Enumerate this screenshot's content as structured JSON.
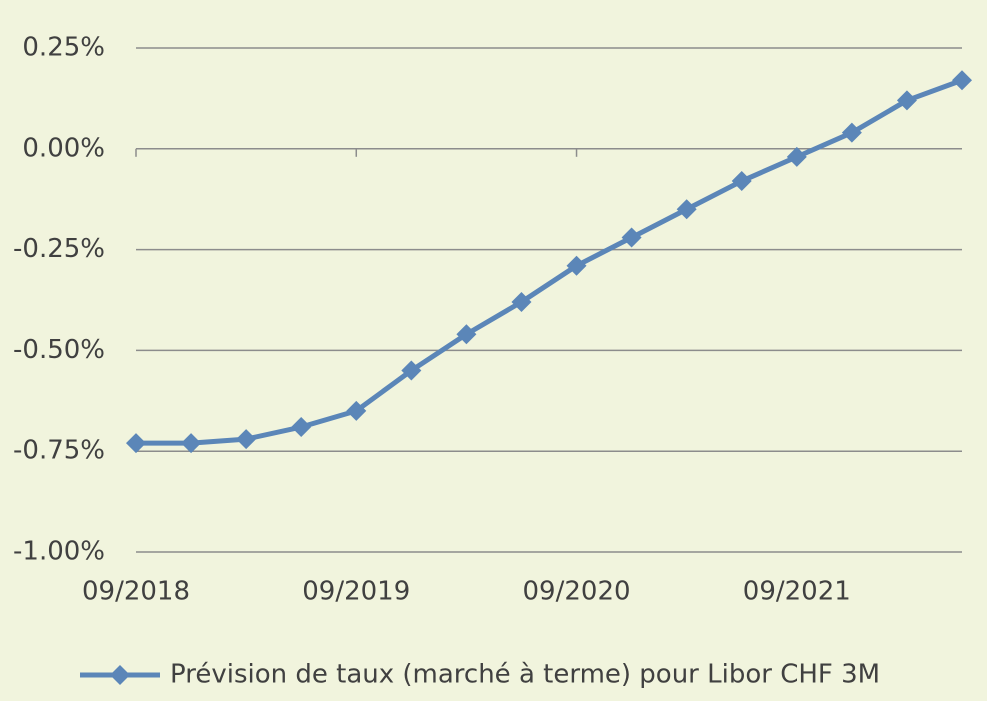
{
  "chart_data": {
    "type": "line",
    "categories": [
      "09/2018",
      null,
      null,
      null,
      "09/2019",
      null,
      null,
      null,
      "09/2020",
      null,
      null,
      null,
      "09/2021",
      null,
      null,
      null
    ],
    "series": [
      {
        "name": "Prévision de taux (marché à terme) pour Libor CHF 3M",
        "color": "#5b86b8",
        "values": [
          -0.73,
          -0.73,
          -0.72,
          -0.69,
          -0.65,
          -0.55,
          -0.46,
          -0.38,
          -0.29,
          -0.22,
          -0.15,
          -0.08,
          -0.02,
          0.04,
          0.12,
          0.17
        ]
      }
    ],
    "ylim": [
      -1,
      0.25
    ],
    "yticks": [
      {
        "value": 0.25,
        "label": "0.25%"
      },
      {
        "value": 0,
        "label": "0.00%"
      },
      {
        "value": -0.25,
        "label": "-0.25%"
      },
      {
        "value": -0.5,
        "label": "-0.50%"
      },
      {
        "value": -0.75,
        "label": "-0.75%"
      },
      {
        "value": -1,
        "label": "-1.00%"
      }
    ],
    "grid": true,
    "legend": "bottom"
  }
}
